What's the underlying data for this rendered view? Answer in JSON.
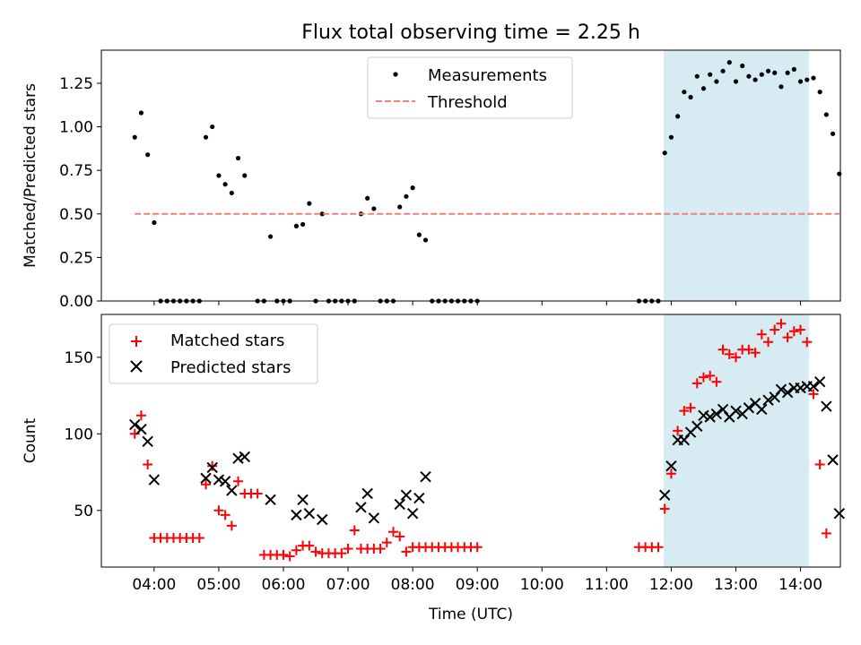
{
  "figure": {
    "title": "Flux total observing time = 2.25 h",
    "xlabel": "Time (UTC)"
  },
  "colors": {
    "measurements": "#000000",
    "threshold": "#f08080",
    "matched": "#ff0000",
    "predicted": "#000000",
    "highlight": "#add8e6"
  },
  "chart_data": [
    {
      "type": "scatter",
      "ylabel": "Matched/Predicted stars",
      "ylim": [
        0,
        1.44
      ],
      "yticks": [
        0.0,
        0.25,
        0.5,
        0.75,
        1.0,
        1.25
      ],
      "ytick_labels": [
        "0.00",
        "0.25",
        "0.50",
        "0.75",
        "1.00",
        "1.25"
      ],
      "xlim": [
        "03:11",
        "14:37"
      ],
      "grid": false,
      "legend": "top-center",
      "highlight_span": [
        "11:53",
        "14:08"
      ],
      "series": [
        {
          "name": "Measurements",
          "marker": "dot",
          "points": [
            [
              "03:42",
              0.94
            ],
            [
              "03:48",
              1.08
            ],
            [
              "03:54",
              0.84
            ],
            [
              "04:00",
              0.45
            ],
            [
              "04:06",
              0.0
            ],
            [
              "04:12",
              0.0
            ],
            [
              "04:18",
              0.0
            ],
            [
              "04:24",
              0.0
            ],
            [
              "04:30",
              0.0
            ],
            [
              "04:36",
              0.0
            ],
            [
              "04:42",
              0.0
            ],
            [
              "04:48",
              0.94
            ],
            [
              "04:54",
              1.0
            ],
            [
              "05:00",
              0.72
            ],
            [
              "05:06",
              0.67
            ],
            [
              "05:12",
              0.62
            ],
            [
              "05:18",
              0.82
            ],
            [
              "05:24",
              0.72
            ],
            [
              "05:36",
              0.0
            ],
            [
              "05:42",
              0.0
            ],
            [
              "05:48",
              0.37
            ],
            [
              "05:54",
              0.0
            ],
            [
              "06:00",
              0.0
            ],
            [
              "06:06",
              0.0
            ],
            [
              "06:12",
              0.43
            ],
            [
              "06:18",
              0.44
            ],
            [
              "06:24",
              0.56
            ],
            [
              "06:30",
              0.0
            ],
            [
              "06:36",
              0.5
            ],
            [
              "06:42",
              0.0
            ],
            [
              "06:48",
              0.0
            ],
            [
              "06:54",
              0.0
            ],
            [
              "07:00",
              0.0
            ],
            [
              "07:06",
              0.0
            ],
            [
              "07:12",
              0.5
            ],
            [
              "07:18",
              0.59
            ],
            [
              "07:24",
              0.53
            ],
            [
              "07:30",
              0.0
            ],
            [
              "07:36",
              0.0
            ],
            [
              "07:42",
              0.0
            ],
            [
              "07:48",
              0.54
            ],
            [
              "07:54",
              0.6
            ],
            [
              "08:00",
              0.65
            ],
            [
              "08:06",
              0.38
            ],
            [
              "08:12",
              0.35
            ],
            [
              "08:18",
              0.0
            ],
            [
              "08:24",
              0.0
            ],
            [
              "08:30",
              0.0
            ],
            [
              "08:36",
              0.0
            ],
            [
              "08:42",
              0.0
            ],
            [
              "08:48",
              0.0
            ],
            [
              "08:54",
              0.0
            ],
            [
              "09:00",
              0.0
            ],
            [
              "11:30",
              0.0
            ],
            [
              "11:36",
              0.0
            ],
            [
              "11:42",
              0.0
            ],
            [
              "11:48",
              0.0
            ],
            [
              "11:54",
              0.85
            ],
            [
              "12:00",
              0.94
            ],
            [
              "12:06",
              1.06
            ],
            [
              "12:12",
              1.2
            ],
            [
              "12:18",
              1.17
            ],
            [
              "12:24",
              1.29
            ],
            [
              "12:30",
              1.22
            ],
            [
              "12:36",
              1.3
            ],
            [
              "12:42",
              1.26
            ],
            [
              "12:48",
              1.32
            ],
            [
              "12:54",
              1.37
            ],
            [
              "13:00",
              1.26
            ],
            [
              "13:06",
              1.35
            ],
            [
              "13:12",
              1.29
            ],
            [
              "13:18",
              1.27
            ],
            [
              "13:24",
              1.3
            ],
            [
              "13:30",
              1.32
            ],
            [
              "13:36",
              1.31
            ],
            [
              "13:42",
              1.23
            ],
            [
              "13:48",
              1.31
            ],
            [
              "13:54",
              1.33
            ],
            [
              "14:00",
              1.26
            ],
            [
              "14:06",
              1.27
            ],
            [
              "14:12",
              1.28
            ],
            [
              "14:18",
              1.2
            ],
            [
              "14:24",
              1.07
            ],
            [
              "14:30",
              0.96
            ],
            [
              "14:36",
              0.73
            ]
          ]
        },
        {
          "name": "Threshold",
          "marker": "dashed-line",
          "points": [
            [
              "03:42",
              0.5
            ],
            [
              "14:36",
              0.5
            ]
          ]
        }
      ]
    },
    {
      "type": "scatter",
      "ylabel": "Count",
      "ylim": [
        13,
        178
      ],
      "yticks": [
        50,
        100,
        150
      ],
      "ytick_labels": [
        "50",
        "100",
        "150"
      ],
      "xlim": [
        "03:11",
        "14:37"
      ],
      "xticks": [
        "04:00",
        "05:00",
        "06:00",
        "07:00",
        "08:00",
        "09:00",
        "10:00",
        "11:00",
        "12:00",
        "13:00",
        "14:00"
      ],
      "grid": false,
      "legend": "top-left",
      "highlight_span": [
        "11:53",
        "14:08"
      ],
      "series": [
        {
          "name": "Matched stars",
          "marker": "plus",
          "points": [
            [
              "03:42",
              100
            ],
            [
              "03:48",
              112
            ],
            [
              "03:54",
              80
            ],
            [
              "04:00",
              32
            ],
            [
              "04:06",
              32
            ],
            [
              "04:12",
              32
            ],
            [
              "04:18",
              32
            ],
            [
              "04:24",
              32
            ],
            [
              "04:30",
              32
            ],
            [
              "04:36",
              32
            ],
            [
              "04:42",
              32
            ],
            [
              "04:48",
              67
            ],
            [
              "04:54",
              79
            ],
            [
              "05:00",
              50
            ],
            [
              "05:06",
              47
            ],
            [
              "05:12",
              40
            ],
            [
              "05:18",
              69
            ],
            [
              "05:24",
              61
            ],
            [
              "05:30",
              61
            ],
            [
              "05:36",
              61
            ],
            [
              "05:42",
              21
            ],
            [
              "05:48",
              21
            ],
            [
              "05:54",
              21
            ],
            [
              "06:00",
              21
            ],
            [
              "06:06",
              20
            ],
            [
              "06:12",
              24
            ],
            [
              "06:18",
              27
            ],
            [
              "06:24",
              27
            ],
            [
              "06:30",
              23
            ],
            [
              "06:36",
              22
            ],
            [
              "06:42",
              22
            ],
            [
              "06:48",
              22
            ],
            [
              "06:54",
              22
            ],
            [
              "07:00",
              25
            ],
            [
              "07:06",
              37
            ],
            [
              "07:12",
              25
            ],
            [
              "07:18",
              25
            ],
            [
              "07:24",
              25
            ],
            [
              "07:30",
              25
            ],
            [
              "07:36",
              29
            ],
            [
              "07:42",
              36
            ],
            [
              "07:48",
              33
            ],
            [
              "07:54",
              23
            ],
            [
              "08:00",
              26
            ],
            [
              "08:06",
              26
            ],
            [
              "08:12",
              26
            ],
            [
              "08:18",
              26
            ],
            [
              "08:24",
              26
            ],
            [
              "08:30",
              26
            ],
            [
              "08:36",
              26
            ],
            [
              "08:42",
              26
            ],
            [
              "08:48",
              26
            ],
            [
              "08:54",
              26
            ],
            [
              "09:00",
              26
            ],
            [
              "11:30",
              26
            ],
            [
              "11:36",
              26
            ],
            [
              "11:42",
              26
            ],
            [
              "11:48",
              26
            ],
            [
              "11:54",
              51
            ],
            [
              "12:00",
              74
            ],
            [
              "12:06",
              102
            ],
            [
              "12:12",
              115
            ],
            [
              "12:18",
              117
            ],
            [
              "12:24",
              133
            ],
            [
              "12:30",
              137
            ],
            [
              "12:36",
              138
            ],
            [
              "12:42",
              134
            ],
            [
              "12:48",
              155
            ],
            [
              "12:54",
              152
            ],
            [
              "13:00",
              150
            ],
            [
              "13:06",
              155
            ],
            [
              "13:12",
              155
            ],
            [
              "13:18",
              153
            ],
            [
              "13:24",
              165
            ],
            [
              "13:30",
              160
            ],
            [
              "13:36",
              168
            ],
            [
              "13:42",
              172
            ],
            [
              "13:48",
              163
            ],
            [
              "13:54",
              167
            ],
            [
              "14:00",
              168
            ],
            [
              "14:06",
              160
            ],
            [
              "14:12",
              126
            ],
            [
              "14:18",
              80
            ],
            [
              "14:24",
              35
            ]
          ]
        },
        {
          "name": "Predicted stars",
          "marker": "x",
          "points": [
            [
              "03:42",
              106
            ],
            [
              "03:48",
              103
            ],
            [
              "03:54",
              95
            ],
            [
              "04:00",
              70
            ],
            [
              "04:48",
              71
            ],
            [
              "04:54",
              78
            ],
            [
              "05:00",
              70
            ],
            [
              "05:06",
              69
            ],
            [
              "05:12",
              63
            ],
            [
              "05:18",
              84
            ],
            [
              "05:24",
              85
            ],
            [
              "05:48",
              57
            ],
            [
              "06:12",
              47
            ],
            [
              "06:18",
              57
            ],
            [
              "06:24",
              48
            ],
            [
              "06:36",
              44
            ],
            [
              "07:12",
              52
            ],
            [
              "07:18",
              61
            ],
            [
              "07:24",
              45
            ],
            [
              "07:48",
              54
            ],
            [
              "07:54",
              60
            ],
            [
              "08:00",
              48
            ],
            [
              "08:06",
              58
            ],
            [
              "08:12",
              72
            ],
            [
              "11:54",
              60
            ],
            [
              "12:00",
              79
            ],
            [
              "12:06",
              96
            ],
            [
              "12:12",
              96
            ],
            [
              "12:18",
              101
            ],
            [
              "12:24",
              105
            ],
            [
              "12:30",
              112
            ],
            [
              "12:36",
              111
            ],
            [
              "12:42",
              113
            ],
            [
              "12:48",
              116
            ],
            [
              "12:54",
              111
            ],
            [
              "13:00",
              115
            ],
            [
              "13:06",
              113
            ],
            [
              "13:12",
              117
            ],
            [
              "13:18",
              120
            ],
            [
              "13:24",
              116
            ],
            [
              "13:30",
              122
            ],
            [
              "13:36",
              124
            ],
            [
              "13:42",
              129
            ],
            [
              "13:48",
              127
            ],
            [
              "13:54",
              130
            ],
            [
              "14:00",
              130
            ],
            [
              "14:06",
              131
            ],
            [
              "14:12",
              131
            ],
            [
              "14:18",
              134
            ],
            [
              "14:24",
              118
            ],
            [
              "14:30",
              83
            ],
            [
              "14:36",
              48
            ]
          ]
        }
      ]
    }
  ]
}
